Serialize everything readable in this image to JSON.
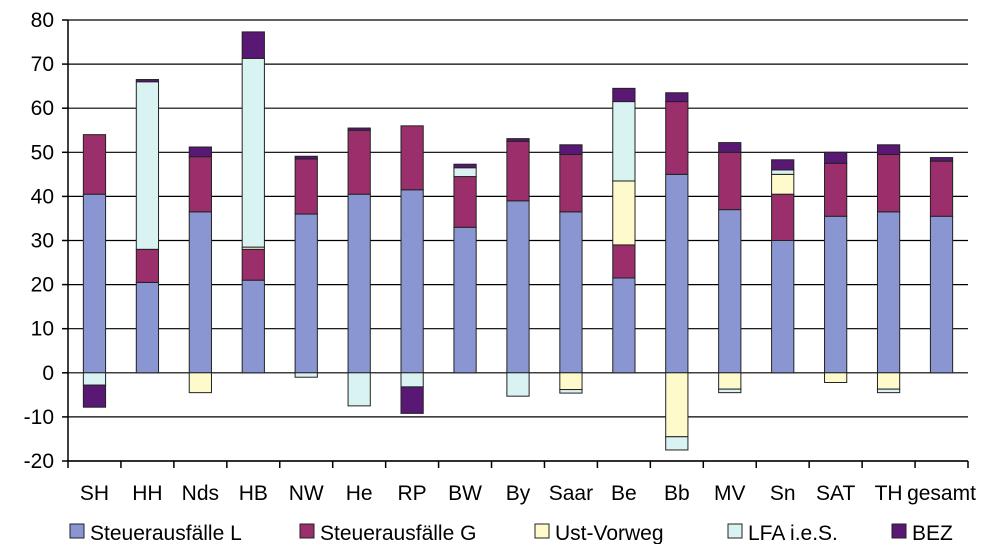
{
  "chart_data": {
    "type": "bar",
    "stacked": true,
    "categories": [
      "SH",
      "HH",
      "Nds",
      "HB",
      "NW",
      "He",
      "RP",
      "BW",
      "By",
      "Saar",
      "Be",
      "Bb",
      "MV",
      "Sn",
      "SAT",
      "TH",
      "gesamt"
    ],
    "ylim": [
      -20,
      80
    ],
    "yticks": [
      -20,
      -10,
      0,
      10,
      20,
      30,
      40,
      50,
      60,
      70,
      80
    ],
    "grid": true,
    "legend_position": "bottom",
    "series": [
      {
        "name": "Steuerausfälle L",
        "color": "#8A96D2",
        "values": [
          40.5,
          20.5,
          36.5,
          21,
          36,
          40.5,
          41.5,
          33,
          39,
          36.5,
          21.5,
          45,
          37,
          30,
          35.5,
          36.5,
          35.5
        ]
      },
      {
        "name": "Steuerausfälle G",
        "color": "#9B2F6B",
        "values": [
          13.5,
          7.5,
          12.5,
          7,
          12.5,
          14.5,
          14.5,
          11.5,
          13.5,
          13,
          7.5,
          16.5,
          13,
          10.5,
          12,
          13,
          12.5
        ]
      },
      {
        "name": "Ust-Vorweg",
        "color": "#FFFACC",
        "values": [
          0,
          0,
          -4.5,
          0.5,
          0,
          0,
          0,
          0,
          0,
          -3.8,
          14.5,
          -14.5,
          -3.7,
          4.5,
          -2.2,
          -3.7,
          0
        ]
      },
      {
        "name": "LFA i.e.S.",
        "color": "#D9F2F2",
        "values": [
          -2.8,
          38,
          0,
          42.8,
          -1,
          -7.5,
          -3.2,
          2,
          -5.3,
          -0.8,
          18,
          -3,
          -0.8,
          1,
          0,
          -0.8,
          0
        ]
      },
      {
        "name": "BEZ",
        "color": "#5A1875",
        "values": [
          -5,
          0.5,
          2.2,
          6,
          0.6,
          0.5,
          -6,
          0.8,
          0.6,
          2.2,
          3,
          2,
          2.2,
          2.3,
          2.5,
          2.2,
          0.8
        ]
      }
    ]
  }
}
